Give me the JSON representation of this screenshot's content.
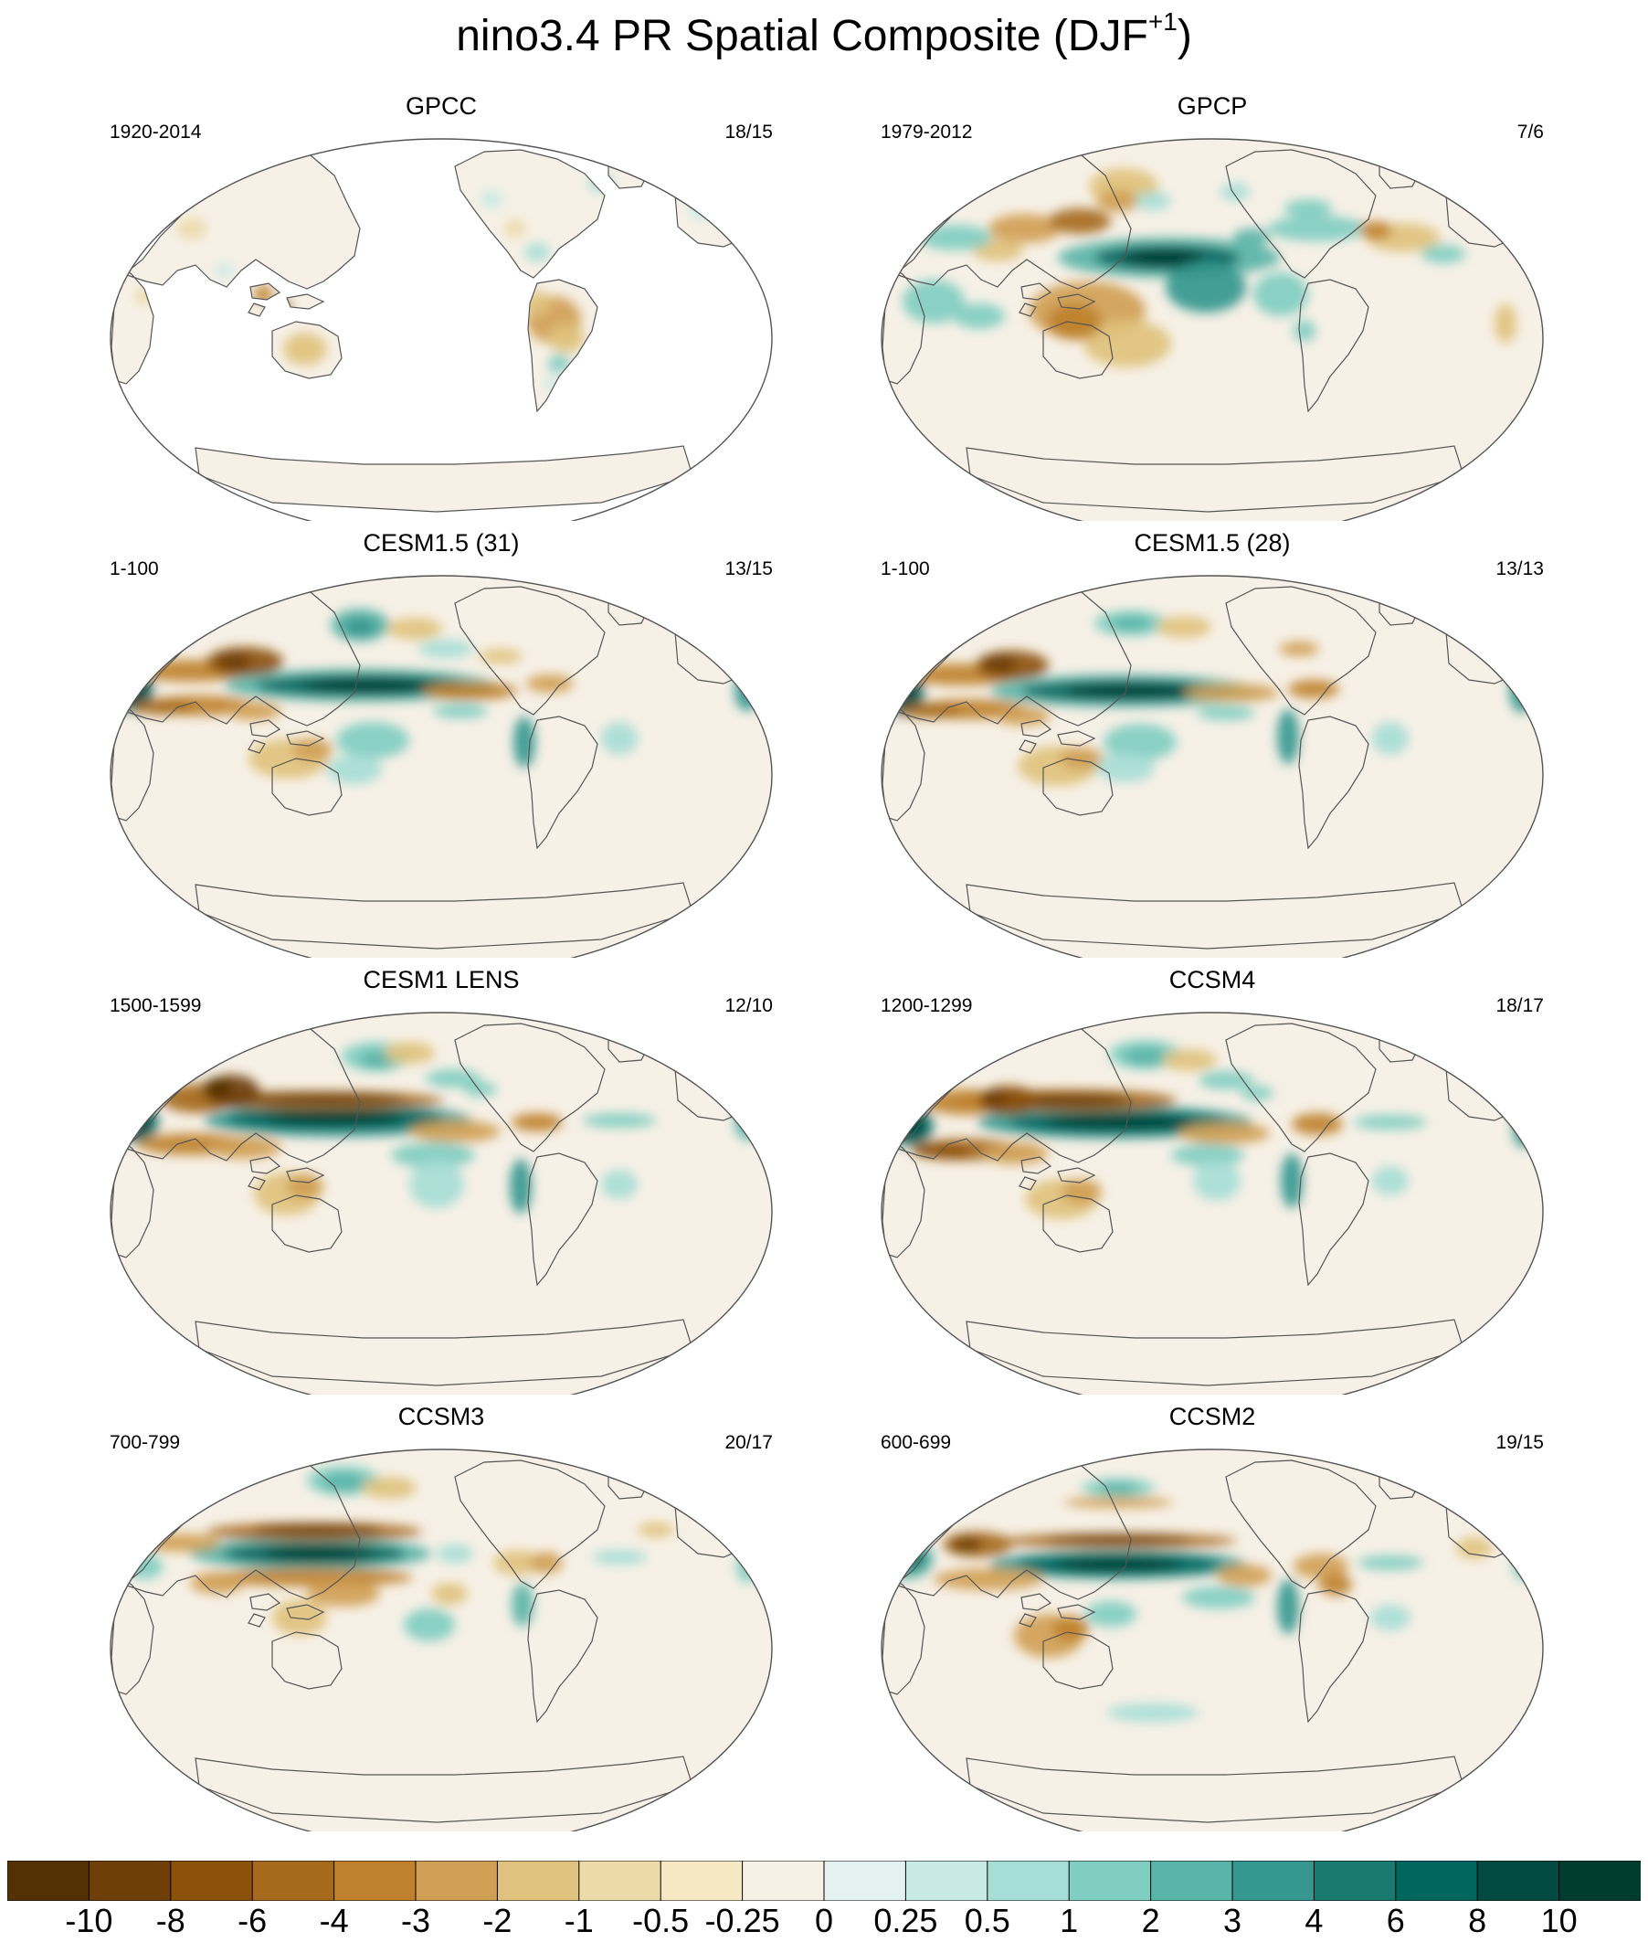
{
  "figure": {
    "title_main": "nino3.4 PR Spatial Composite (DJF",
    "title_sup": "+1",
    "title_end": ")"
  },
  "panels": [
    {
      "title": "GPCC",
      "period": "1920-2014",
      "count": "18/15",
      "land_only": true
    },
    {
      "title": "GPCP",
      "period": "1979-2012",
      "count": "7/6",
      "land_only": false
    },
    {
      "title": "CESM1.5 (31)",
      "period": "1-100",
      "count": "13/15",
      "land_only": false
    },
    {
      "title": "CESM1.5 (28)",
      "period": "1-100",
      "count": "13/13",
      "land_only": false
    },
    {
      "title": "CESM1 LENS",
      "period": "1500-1599",
      "count": "12/10",
      "land_only": false
    },
    {
      "title": "CCSM4",
      "period": "1200-1299",
      "count": "18/17",
      "land_only": false
    },
    {
      "title": "CCSM3",
      "period": "700-799",
      "count": "20/17",
      "land_only": false
    },
    {
      "title": "CCSM2",
      "period": "600-699",
      "count": "19/15",
      "land_only": false
    }
  ],
  "colorbar": {
    "labels": [
      "-10",
      "-8",
      "-6",
      "-4",
      "-3",
      "-2",
      "-1",
      "-0.5",
      "-0.25",
      "0",
      "0.25",
      "0.5",
      "1",
      "2",
      "3",
      "4",
      "6",
      "8",
      "10"
    ],
    "colors": [
      "#543005",
      "#6f3f0a",
      "#8c510a",
      "#a66a1d",
      "#bf812d",
      "#d09f55",
      "#dfc27d",
      "#eddaa9",
      "#f6e8c3",
      "#f6f0e6",
      "#e3f2ef",
      "#c7eae5",
      "#a6ddd6",
      "#80cdc1",
      "#5ab4a8",
      "#35978f",
      "#1a7a70",
      "#01665e",
      "#004a42",
      "#003c30"
    ]
  }
}
